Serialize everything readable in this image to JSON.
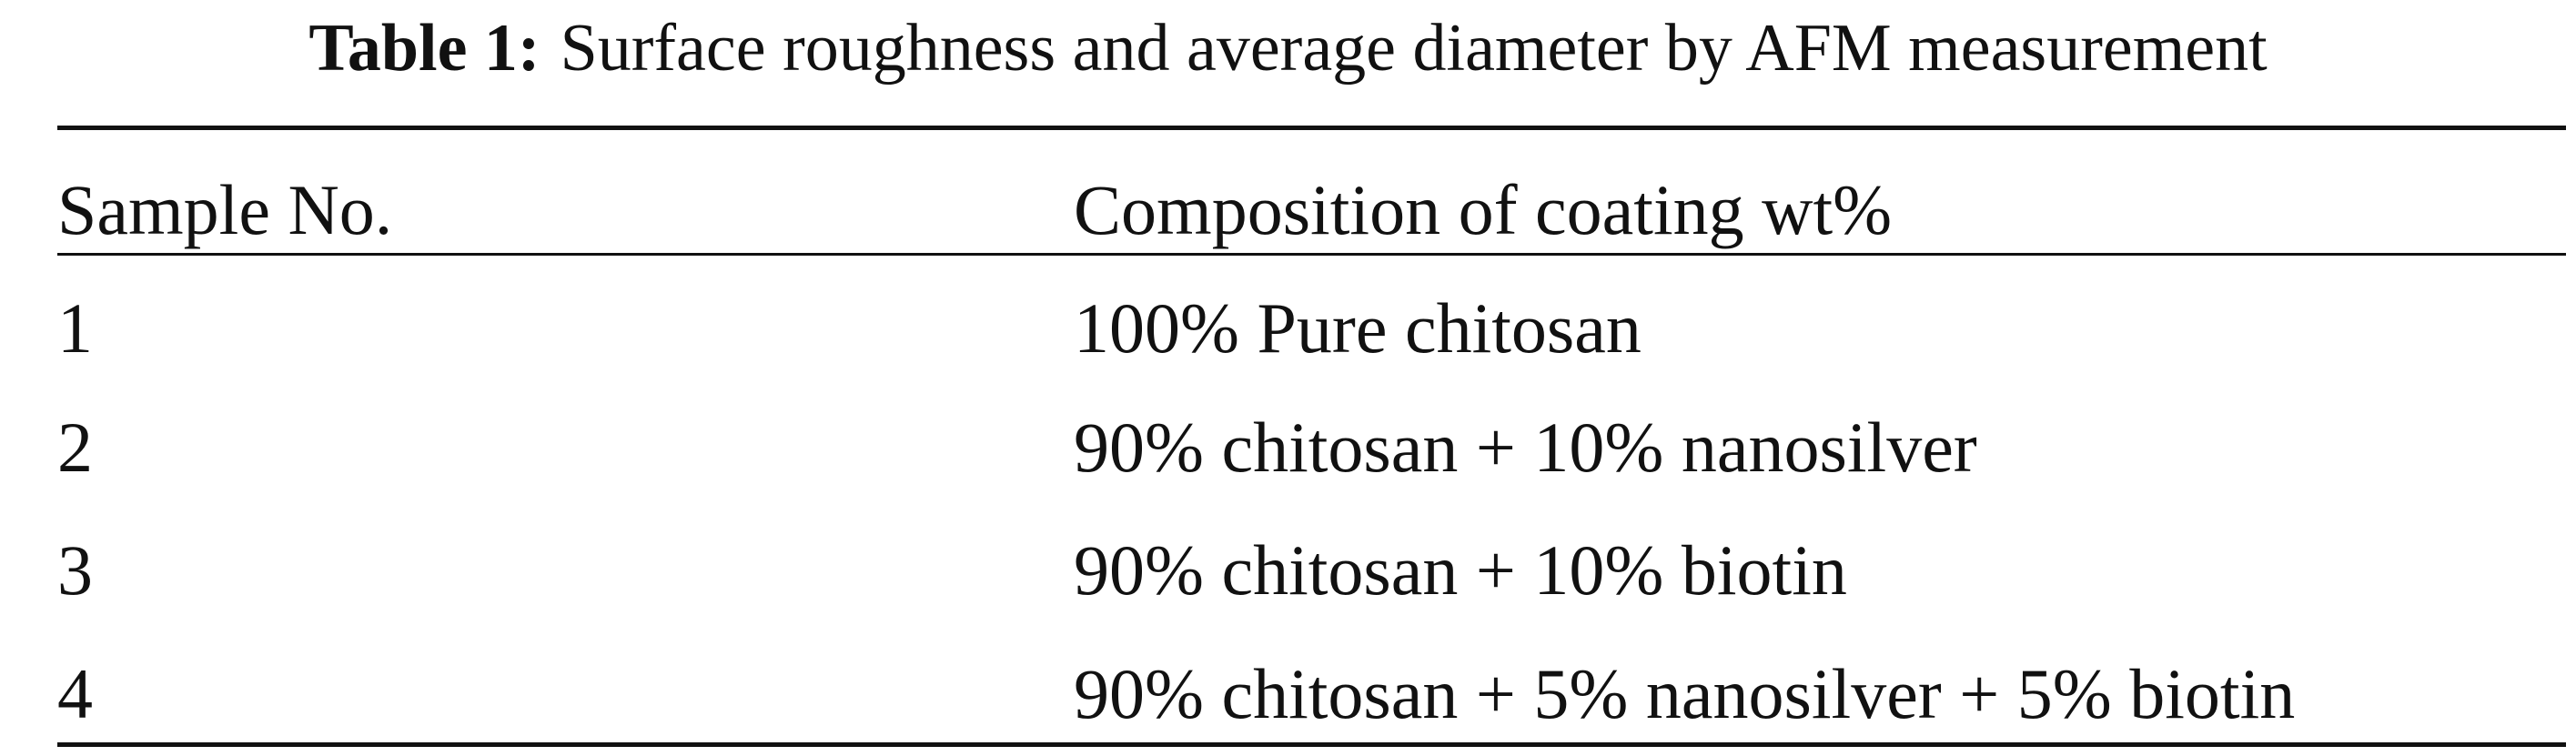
{
  "table": {
    "label": "Table 1:",
    "caption": "Surface roughness and average diameter by AFM measurement",
    "header": [
      "Sample No.",
      "Composition of coating wt%"
    ],
    "rows": [
      [
        "1",
        "100% Pure chitosan"
      ],
      [
        "2",
        "90% chitosan + 10% nanosilver"
      ],
      [
        "3",
        "90% chitosan + 10% biotin"
      ],
      [
        "4",
        "90% chitosan + 5% nanosilver + 5% biotin"
      ]
    ]
  }
}
